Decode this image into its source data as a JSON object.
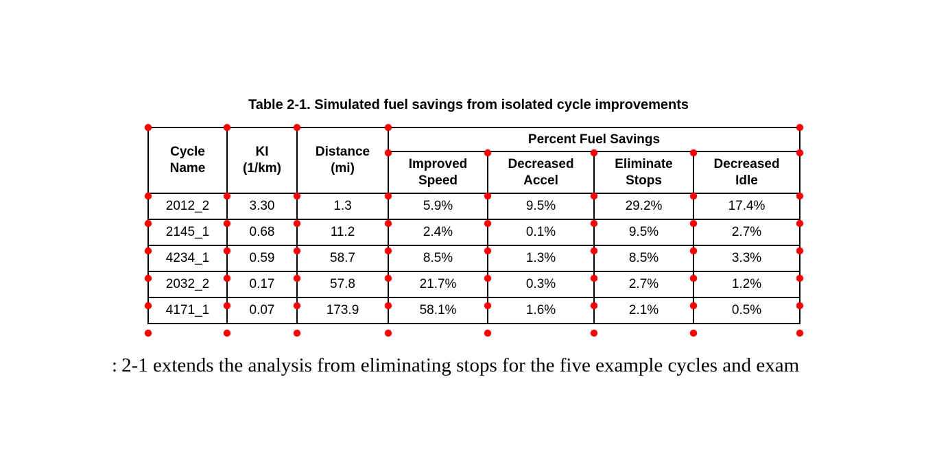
{
  "title": "Table 2-1. Simulated fuel savings from isolated cycle improvements",
  "table": {
    "group_header": "Percent Fuel Savings",
    "columns": [
      {
        "line1": "Cycle",
        "line2": "Name"
      },
      {
        "line1": "KI",
        "line2": "(1/km)"
      },
      {
        "line1": "Distance",
        "line2": "(mi)"
      },
      {
        "line1": "Improved",
        "line2": "Speed"
      },
      {
        "line1": "Decreased",
        "line2": "Accel"
      },
      {
        "line1": "Eliminate",
        "line2": "Stops"
      },
      {
        "line1": "Decreased",
        "line2": "Idle"
      }
    ],
    "rows": [
      [
        "2012_2",
        "3.30",
        "1.3",
        "5.9%",
        "9.5%",
        "29.2%",
        "17.4%"
      ],
      [
        "2145_1",
        "0.68",
        "11.2",
        "2.4%",
        "0.1%",
        "9.5%",
        "2.7%"
      ],
      [
        "4234_1",
        "0.59",
        "58.7",
        "8.5%",
        "1.3%",
        "8.5%",
        "3.3%"
      ],
      [
        "2032_2",
        "0.17",
        "57.8",
        "21.7%",
        "0.3%",
        "2.7%",
        "1.2%"
      ],
      [
        "4171_1",
        "0.07",
        "173.9",
        "58.1%",
        "1.6%",
        "2.1%",
        "0.5%"
      ]
    ]
  },
  "body_text": {
    "fragment": ":",
    "text": "2-1 extends the analysis from eliminating stops for the five example cycles and exam"
  },
  "colors": {
    "marker": "#ff0000",
    "border": "#000000"
  }
}
